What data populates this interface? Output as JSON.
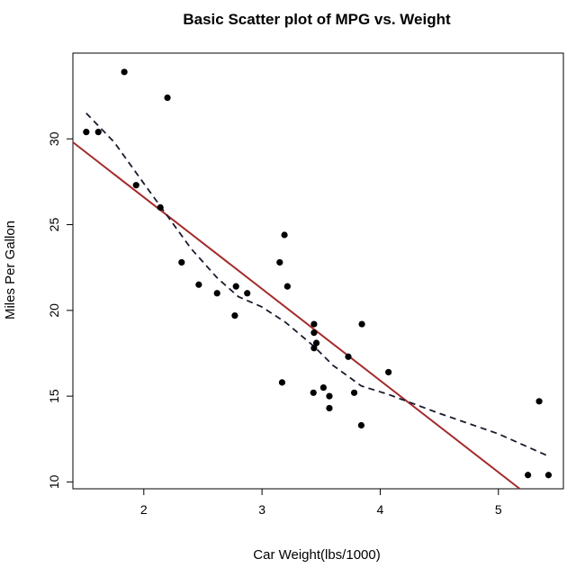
{
  "chart_data": {
    "type": "scatter",
    "title": "Basic Scatter plot of MPG vs. Weight",
    "xlabel": "Car Weight(lbs/1000)",
    "ylabel": "Miles Per Gallon",
    "xlim": [
      1.4,
      5.55
    ],
    "ylim": [
      9.6,
      35
    ],
    "xticks": [
      2,
      3,
      4,
      5
    ],
    "yticks": [
      10,
      15,
      20,
      25,
      30
    ],
    "grid": false,
    "legend": "none",
    "points": [
      {
        "x": 2.62,
        "y": 21.0
      },
      {
        "x": 2.875,
        "y": 21.0
      },
      {
        "x": 2.32,
        "y": 22.8
      },
      {
        "x": 3.215,
        "y": 21.4
      },
      {
        "x": 3.44,
        "y": 18.7
      },
      {
        "x": 3.46,
        "y": 18.1
      },
      {
        "x": 3.57,
        "y": 14.3
      },
      {
        "x": 3.19,
        "y": 24.4
      },
      {
        "x": 3.15,
        "y": 22.8
      },
      {
        "x": 3.44,
        "y": 19.2
      },
      {
        "x": 3.44,
        "y": 17.8
      },
      {
        "x": 4.07,
        "y": 16.4
      },
      {
        "x": 3.73,
        "y": 17.3
      },
      {
        "x": 3.78,
        "y": 15.2
      },
      {
        "x": 5.25,
        "y": 10.4
      },
      {
        "x": 5.424,
        "y": 10.4
      },
      {
        "x": 5.345,
        "y": 14.7
      },
      {
        "x": 2.2,
        "y": 32.4
      },
      {
        "x": 1.615,
        "y": 30.4
      },
      {
        "x": 1.835,
        "y": 33.9
      },
      {
        "x": 2.465,
        "y": 21.5
      },
      {
        "x": 3.52,
        "y": 15.5
      },
      {
        "x": 3.435,
        "y": 15.2
      },
      {
        "x": 3.84,
        "y": 13.3
      },
      {
        "x": 3.845,
        "y": 19.2
      },
      {
        "x": 1.935,
        "y": 27.3
      },
      {
        "x": 2.14,
        "y": 26.0
      },
      {
        "x": 1.513,
        "y": 30.4
      },
      {
        "x": 3.17,
        "y": 15.8
      },
      {
        "x": 2.77,
        "y": 19.7
      },
      {
        "x": 3.57,
        "y": 15.0
      },
      {
        "x": 2.78,
        "y": 21.4
      }
    ],
    "regression_line": {
      "color": "#a52a2a",
      "intercept": 37.285,
      "slope": -5.344
    },
    "lowess_curve": {
      "color": "#1a1a2e",
      "style": "dashed",
      "points": [
        {
          "x": 1.513,
          "y": 31.5
        },
        {
          "x": 1.75,
          "y": 29.8
        },
        {
          "x": 2.0,
          "y": 27.4
        },
        {
          "x": 2.2,
          "y": 25.5
        },
        {
          "x": 2.4,
          "y": 23.6
        },
        {
          "x": 2.62,
          "y": 21.9
        },
        {
          "x": 2.8,
          "y": 20.8
        },
        {
          "x": 3.0,
          "y": 20.2
        },
        {
          "x": 3.2,
          "y": 19.3
        },
        {
          "x": 3.44,
          "y": 17.9
        },
        {
          "x": 3.6,
          "y": 16.8
        },
        {
          "x": 3.84,
          "y": 15.6
        },
        {
          "x": 4.07,
          "y": 15.1
        },
        {
          "x": 4.5,
          "y": 14.0
        },
        {
          "x": 5.0,
          "y": 12.8
        },
        {
          "x": 5.424,
          "y": 11.5
        }
      ]
    }
  }
}
